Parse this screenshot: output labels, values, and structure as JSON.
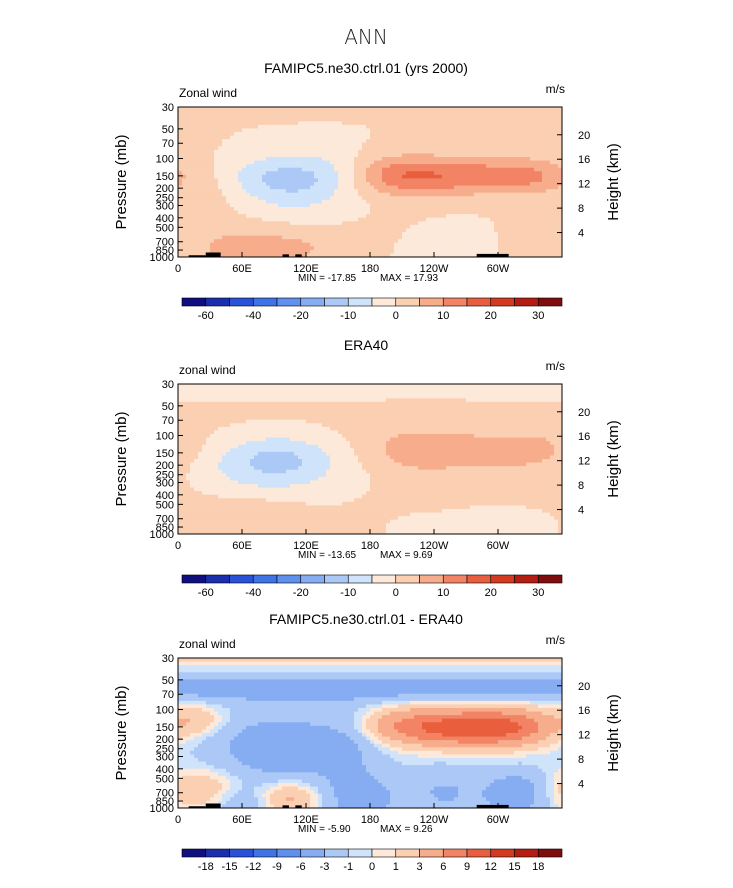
{
  "figure_title": "ANN",
  "chart_data": [
    {
      "type": "heatmap",
      "title": "FAMIPC5.ne30.ctrl.01 (yrs 2000)",
      "variable_label": "Zonal wind",
      "units_label": "m/s",
      "ylabel_left": "Pressure (mb)",
      "ylabel_right": "Height (km)",
      "x_ticks": [
        "0",
        "60E",
        "120E",
        "180",
        "120W",
        "60W"
      ],
      "x_tick_values": [
        0,
        60,
        120,
        180,
        240,
        300
      ],
      "xlim": [
        0,
        360
      ],
      "p_ticks": [
        "30",
        "50",
        "70",
        "100",
        "150",
        "200",
        "250",
        "300",
        "400",
        "500",
        "700",
        "850",
        "1000"
      ],
      "p_tick_values": [
        30,
        50,
        70,
        100,
        150,
        200,
        250,
        300,
        400,
        500,
        700,
        850,
        1000
      ],
      "plim": [
        30,
        1000
      ],
      "z_ticks": [
        "20",
        "16",
        "12",
        "8",
        "4"
      ],
      "z_tick_values": [
        20,
        16,
        12,
        8,
        4
      ],
      "min_label": "MIN = -17.85",
      "max_label": "MAX = 17.93",
      "min": -17.85,
      "max": 17.93,
      "colorbar_labels": [
        "-60",
        "-40",
        "-20",
        "-10",
        "0",
        "10",
        "20",
        "30"
      ],
      "colorbar_levels": [
        -60,
        -50,
        -40,
        -30,
        -20,
        -15,
        -10,
        -5,
        0,
        5,
        10,
        15,
        20,
        25,
        30
      ],
      "colors": [
        "#0f0f7f",
        "#1a2fae",
        "#2a52d8",
        "#3f73e6",
        "#6090ee",
        "#86adf2",
        "#abc8f6",
        "#cfe3fa",
        "#fde9d9",
        "#fbcfb2",
        "#f7ad8c",
        "#f28465",
        "#e95e3d",
        "#d33a20",
        "#b51c12",
        "#7f0d0d"
      ],
      "features": [
        {
          "x": 150,
          "p": 10,
          "amp": 2,
          "sx": 300,
          "sy": 0.55
        },
        {
          "x": 215,
          "p": 150,
          "amp": 15,
          "sx": 35,
          "sy": 0.33
        },
        {
          "x": 322,
          "p": 150,
          "amp": 12,
          "sx": 30,
          "sy": 0.3
        },
        {
          "x": 270,
          "p": 150,
          "amp": 7,
          "sx": 25,
          "sy": 0.3
        },
        {
          "x": 35,
          "p": 180,
          "amp": 4,
          "sx": 28,
          "sy": 0.45
        },
        {
          "x": 85,
          "p": 150,
          "amp": -8,
          "sx": 40,
          "sy": 0.35
        },
        {
          "x": 105,
          "p": 230,
          "amp": -5,
          "sx": 40,
          "sy": 0.45
        },
        {
          "x": 140,
          "p": 140,
          "amp": -4,
          "sx": 30,
          "sy": 0.4
        },
        {
          "x": 55,
          "p": 780,
          "amp": 6,
          "sx": 40,
          "sy": 0.4
        },
        {
          "x": 110,
          "p": 830,
          "amp": 4,
          "sx": 25,
          "sy": 0.3
        },
        {
          "x": 250,
          "p": 850,
          "amp": -6,
          "sx": 40,
          "sy": 0.35
        },
        {
          "x": 195,
          "p": 780,
          "amp": 3,
          "sx": 40,
          "sy": 0.4
        },
        {
          "x": 320,
          "p": 820,
          "amp": 3,
          "sx": 30,
          "sy": 0.35
        }
      ],
      "topography": [
        {
          "x0": 10,
          "x1": 26,
          "p": 960
        },
        {
          "x0": 26,
          "x1": 40,
          "p": 900
        },
        {
          "x0": 98,
          "x1": 104,
          "p": 940
        },
        {
          "x0": 110,
          "x1": 116,
          "p": 940
        },
        {
          "x0": 280,
          "x1": 310,
          "p": 930
        }
      ]
    },
    {
      "type": "heatmap",
      "title": "ERA40",
      "variable_label": "zonal wind",
      "units_label": "m/s",
      "ylabel_left": "Pressure (mb)",
      "ylabel_right": "Height (km)",
      "x_ticks": [
        "0",
        "60E",
        "120E",
        "180",
        "120W",
        "60W"
      ],
      "x_tick_values": [
        0,
        60,
        120,
        180,
        240,
        300
      ],
      "xlim": [
        0,
        360
      ],
      "p_ticks": [
        "30",
        "50",
        "70",
        "100",
        "150",
        "200",
        "250",
        "300",
        "400",
        "500",
        "700",
        "850",
        "1000"
      ],
      "p_tick_values": [
        30,
        50,
        70,
        100,
        150,
        200,
        250,
        300,
        400,
        500,
        700,
        850,
        1000
      ],
      "plim": [
        30,
        1000
      ],
      "z_ticks": [
        "20",
        "16",
        "12",
        "8",
        "4"
      ],
      "z_tick_values": [
        20,
        16,
        12,
        8,
        4
      ],
      "min_label": "MIN = -13.65",
      "max_label": "MAX =   9.69",
      "min": -13.65,
      "max": 9.69,
      "colorbar_labels": [
        "-60",
        "-40",
        "-20",
        "-10",
        "0",
        "10",
        "20",
        "30"
      ],
      "colorbar_levels": [
        -60,
        -50,
        -40,
        -30,
        -20,
        -15,
        -10,
        -5,
        0,
        5,
        10,
        15,
        20,
        25,
        30
      ],
      "colors": [
        "#0f0f7f",
        "#1a2fae",
        "#2a52d8",
        "#3f73e6",
        "#6090ee",
        "#86adf2",
        "#abc8f6",
        "#cfe3fa",
        "#fde9d9",
        "#fbcfb2",
        "#f7ad8c",
        "#f28465",
        "#e95e3d",
        "#d33a20",
        "#b51c12",
        "#7f0d0d"
      ],
      "features": [
        {
          "x": 170,
          "p": 30,
          "amp": -5,
          "sx": 400,
          "sy": 0.18
        },
        {
          "x": 180,
          "p": 300,
          "amp": 2,
          "sx": 400,
          "sy": 1.2
        },
        {
          "x": 225,
          "p": 140,
          "amp": 7,
          "sx": 30,
          "sy": 0.35
        },
        {
          "x": 330,
          "p": 140,
          "amp": 6,
          "sx": 28,
          "sy": 0.3
        },
        {
          "x": 275,
          "p": 140,
          "amp": 4,
          "sx": 25,
          "sy": 0.3
        },
        {
          "x": 100,
          "p": 170,
          "amp": -10,
          "sx": 35,
          "sy": 0.4
        },
        {
          "x": 55,
          "p": 200,
          "amp": -4,
          "sx": 30,
          "sy": 0.45
        },
        {
          "x": 110,
          "p": 300,
          "amp": -4,
          "sx": 60,
          "sy": 0.5
        },
        {
          "x": 70,
          "p": 700,
          "amp": 4,
          "sx": 35,
          "sy": 0.35
        },
        {
          "x": 300,
          "p": 830,
          "amp": -6,
          "sx": 35,
          "sy": 0.3
        },
        {
          "x": 230,
          "p": 870,
          "amp": -3,
          "sx": 25,
          "sy": 0.25
        }
      ],
      "topography": []
    },
    {
      "type": "heatmap",
      "title": "FAMIPC5.ne30.ctrl.01 - ERA40",
      "variable_label": "zonal wind",
      "units_label": "m/s",
      "ylabel_left": "Pressure (mb)",
      "ylabel_right": "Height (km)",
      "x_ticks": [
        "0",
        "60E",
        "120E",
        "180",
        "120W",
        "60W"
      ],
      "x_tick_values": [
        0,
        60,
        120,
        180,
        240,
        300
      ],
      "xlim": [
        0,
        360
      ],
      "p_ticks": [
        "30",
        "50",
        "70",
        "100",
        "150",
        "200",
        "250",
        "300",
        "400",
        "500",
        "700",
        "850",
        "1000"
      ],
      "p_tick_values": [
        30,
        50,
        70,
        100,
        150,
        200,
        250,
        300,
        400,
        500,
        700,
        850,
        1000
      ],
      "plim": [
        30,
        1000
      ],
      "z_ticks": [
        "20",
        "16",
        "12",
        "8",
        "4"
      ],
      "z_tick_values": [
        20,
        16,
        12,
        8,
        4
      ],
      "min_label": "MIN =  -5.90",
      "max_label": "MAX =   9.26",
      "min": -5.9,
      "max": 9.26,
      "colorbar_labels": [
        "-18",
        "-15",
        "-12",
        "-9",
        "-6",
        "-3",
        "-1",
        "0",
        "1",
        "3",
        "6",
        "9",
        "12",
        "15",
        "18"
      ],
      "colorbar_levels": [
        -18,
        -15,
        -12,
        -9,
        -6,
        -3,
        -1,
        0,
        1,
        3,
        6,
        9,
        12,
        15,
        18
      ],
      "colors": [
        "#0f0f7f",
        "#1a2fae",
        "#2a52d8",
        "#3f73e6",
        "#6090ee",
        "#86adf2",
        "#abc8f6",
        "#cfe3fa",
        "#fde9d9",
        "#fbcfb2",
        "#f7ad8c",
        "#f28465",
        "#e95e3d",
        "#d33a20",
        "#b51c12",
        "#7f0d0d"
      ],
      "features": [
        {
          "x": 200,
          "p": 60,
          "amp": -4.5,
          "sx": 400,
          "sy": 0.22
        },
        {
          "x": 180,
          "p": 30,
          "amp": 2.5,
          "sx": 400,
          "sy": 0.1
        },
        {
          "x": 230,
          "p": 150,
          "amp": 8,
          "sx": 45,
          "sy": 0.3
        },
        {
          "x": 315,
          "p": 150,
          "amp": 7,
          "sx": 30,
          "sy": 0.3
        },
        {
          "x": 275,
          "p": 160,
          "amp": 4,
          "sx": 30,
          "sy": 0.3
        },
        {
          "x": 90,
          "p": 250,
          "amp": -4.5,
          "sx": 50,
          "sy": 0.7
        },
        {
          "x": 160,
          "p": 180,
          "amp": -3,
          "sx": 25,
          "sy": 0.5
        },
        {
          "x": 20,
          "p": 130,
          "amp": 3,
          "sx": 18,
          "sy": 0.25
        },
        {
          "x": 20,
          "p": 650,
          "amp": 4,
          "sx": 30,
          "sy": 0.35
        },
        {
          "x": 105,
          "p": 800,
          "amp": 5,
          "sx": 22,
          "sy": 0.3
        },
        {
          "x": 170,
          "p": 800,
          "amp": -4,
          "sx": 30,
          "sy": 0.5
        },
        {
          "x": 320,
          "p": 700,
          "amp": -5,
          "sx": 25,
          "sy": 0.4
        },
        {
          "x": 250,
          "p": 700,
          "amp": -3,
          "sx": 25,
          "sy": 0.5
        },
        {
          "x": 60,
          "p": 900,
          "amp": -3,
          "sx": 25,
          "sy": 0.3
        }
      ],
      "topography": [
        {
          "x0": 10,
          "x1": 26,
          "p": 960
        },
        {
          "x0": 26,
          "x1": 40,
          "p": 900
        },
        {
          "x0": 98,
          "x1": 104,
          "p": 940
        },
        {
          "x0": 110,
          "x1": 116,
          "p": 940
        },
        {
          "x0": 280,
          "x1": 310,
          "p": 930
        }
      ]
    }
  ]
}
